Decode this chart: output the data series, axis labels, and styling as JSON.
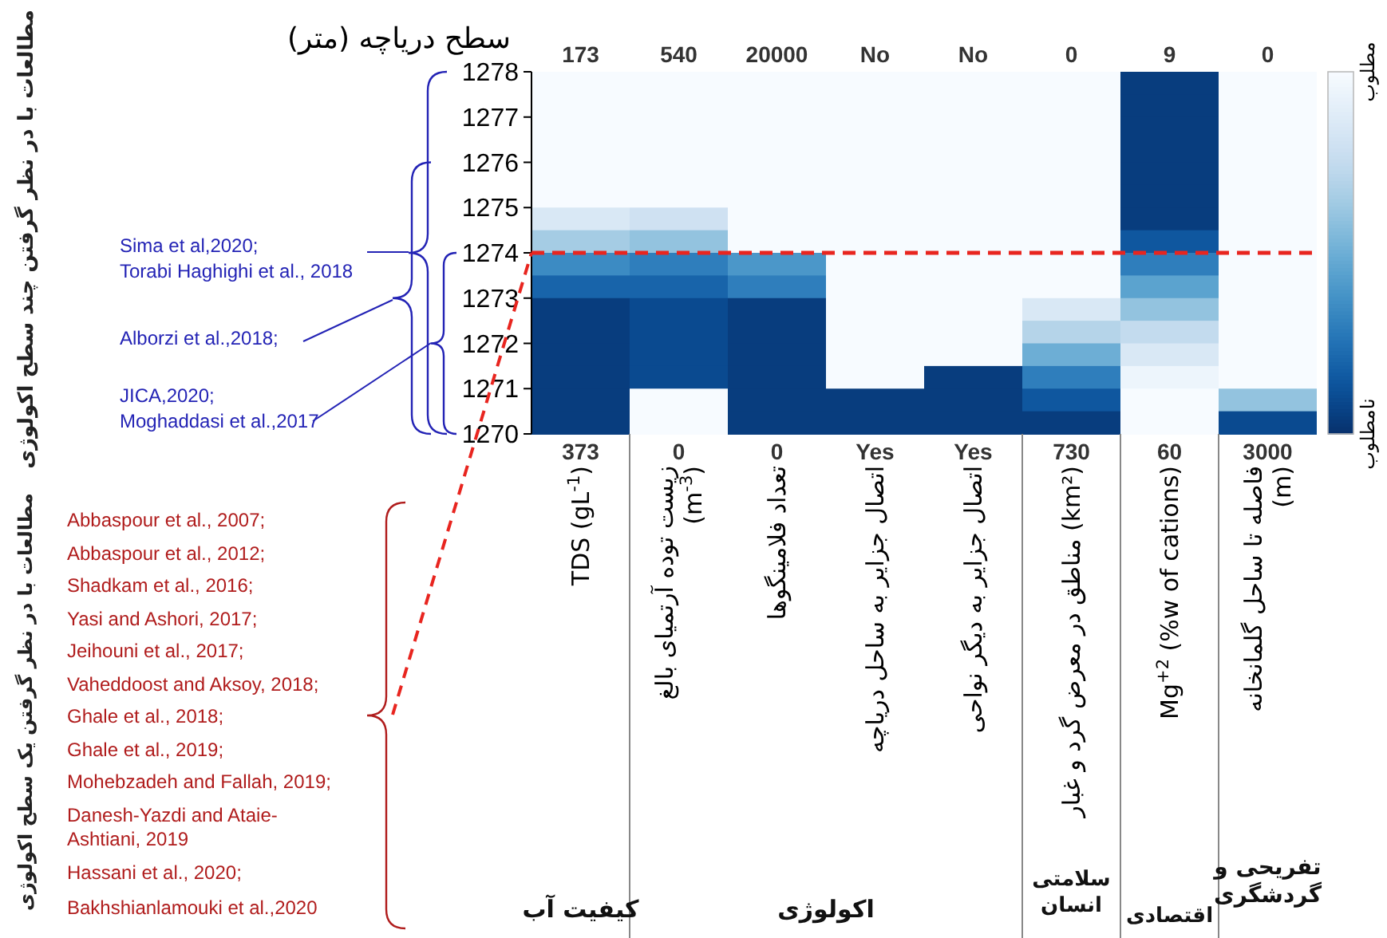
{
  "chart_data": {
    "type": "heatmap",
    "ylabel": "سطح دریاچه (متر)",
    "categories": [
      "TDS (gL$^{-1}$)",
      "زیست توده آرتمیای بالغ\n(m$^{-3}$)",
      "تعداد فلامینگوها",
      "اتصال جزایر به ساحل دریاچه",
      "اتصال جزایر به دیگر نواحی",
      "مناطق در معرض گرد و غبار (km²)",
      "Mg$^{+2}$ (%w of cations)",
      "فاصله تا ساحل گلمانخانه\n(m)"
    ],
    "ylim": [
      1270,
      1278
    ],
    "yticks": [
      1270,
      1271,
      1272,
      1273,
      1274,
      1275,
      1276,
      1277,
      1278
    ],
    "cells": [
      [
        1,
        1,
        1,
        1,
        1,
        1,
        0.05,
        1
      ],
      [
        1,
        1,
        1,
        1,
        1,
        1,
        0.05,
        1
      ],
      [
        1,
        1,
        1,
        1,
        1,
        1,
        0.05,
        1
      ],
      [
        1,
        1,
        1,
        1,
        1,
        1,
        0.05,
        1
      ],
      [
        1,
        1,
        1,
        1,
        1,
        1,
        0.05,
        1
      ],
      [
        1,
        1,
        1,
        1,
        1,
        1,
        0.05,
        1
      ],
      [
        0.85,
        0.8,
        1,
        1,
        1,
        1,
        0.05,
        1
      ],
      [
        0.65,
        0.6,
        1,
        1,
        1,
        1,
        0.15,
        1
      ],
      [
        0.35,
        0.3,
        0.4,
        1,
        1,
        1,
        0.3,
        1
      ],
      [
        0.2,
        0.2,
        0.3,
        1,
        1,
        1,
        0.45,
        1
      ],
      [
        0.05,
        0.1,
        0.05,
        1,
        1,
        0.85,
        0.6,
        1
      ],
      [
        0.05,
        0.1,
        0.05,
        1,
        1,
        0.7,
        0.75,
        1
      ],
      [
        0.05,
        0.1,
        0.05,
        1,
        1,
        0.5,
        0.85,
        1
      ],
      [
        0.05,
        0.1,
        0.05,
        1,
        0.05,
        0.3,
        0.95,
        1
      ],
      [
        0.05,
        1,
        0.05,
        0.05,
        0.05,
        0.15,
        1,
        0.6
      ],
      [
        0.05,
        1,
        0.05,
        0.05,
        0.05,
        0.05,
        1,
        0.1
      ]
    ],
    "clim": [
      0,
      1
    ],
    "cticks": [
      {
        "value": 0,
        "label": "نامطلوب"
      },
      {
        "value": 1,
        "label": "مطلوب"
      }
    ],
    "ref_lines": [
      {
        "axis": "y",
        "value": 1274,
        "color": "#e8251f",
        "line_style": "dashed"
      }
    ],
    "annotations": [
      "مطالعات با در نظر گرفتن چند سطح اکولوژی",
      "مطالعات با در نظر گرفتن یک سطح اکولوژی",
      "Sima et al,2020;",
      "Torabi Haghighi et al., 2018",
      "Alborzi et al.,2018;",
      "JICA,2020;",
      "Moghaddasi et al.,2017",
      "Abbaspour et al., 2007;",
      "Abbaspour et al., 2012;",
      "Shadkam et al., 2016;",
      "Yasi and Ashori, 2017;",
      "Jeihouni et al., 2017;",
      "Vaheddoost and Aksoy, 2018;",
      "Ghale et al., 2018;",
      "Ghale et al., 2019;",
      "Mohebzadeh and Fallah, 2019;",
      "Danesh-Yazdi and Ataie-\nAshtiani, 2019",
      "Hassani et al., 2020;",
      "Bakhshianlamouki et al.,2020",
      "کیفیت آب",
      "اکولوژی",
      "سلامتی\nانسان",
      "اقتصادی",
      "تفریحی و\nگردشگری",
      "173",
      "540",
      "20000",
      "No",
      "No",
      "0",
      "9",
      "0",
      "373",
      "0",
      "0",
      "Yes",
      "Yes",
      "730",
      "60",
      "3000"
    ]
  }
}
